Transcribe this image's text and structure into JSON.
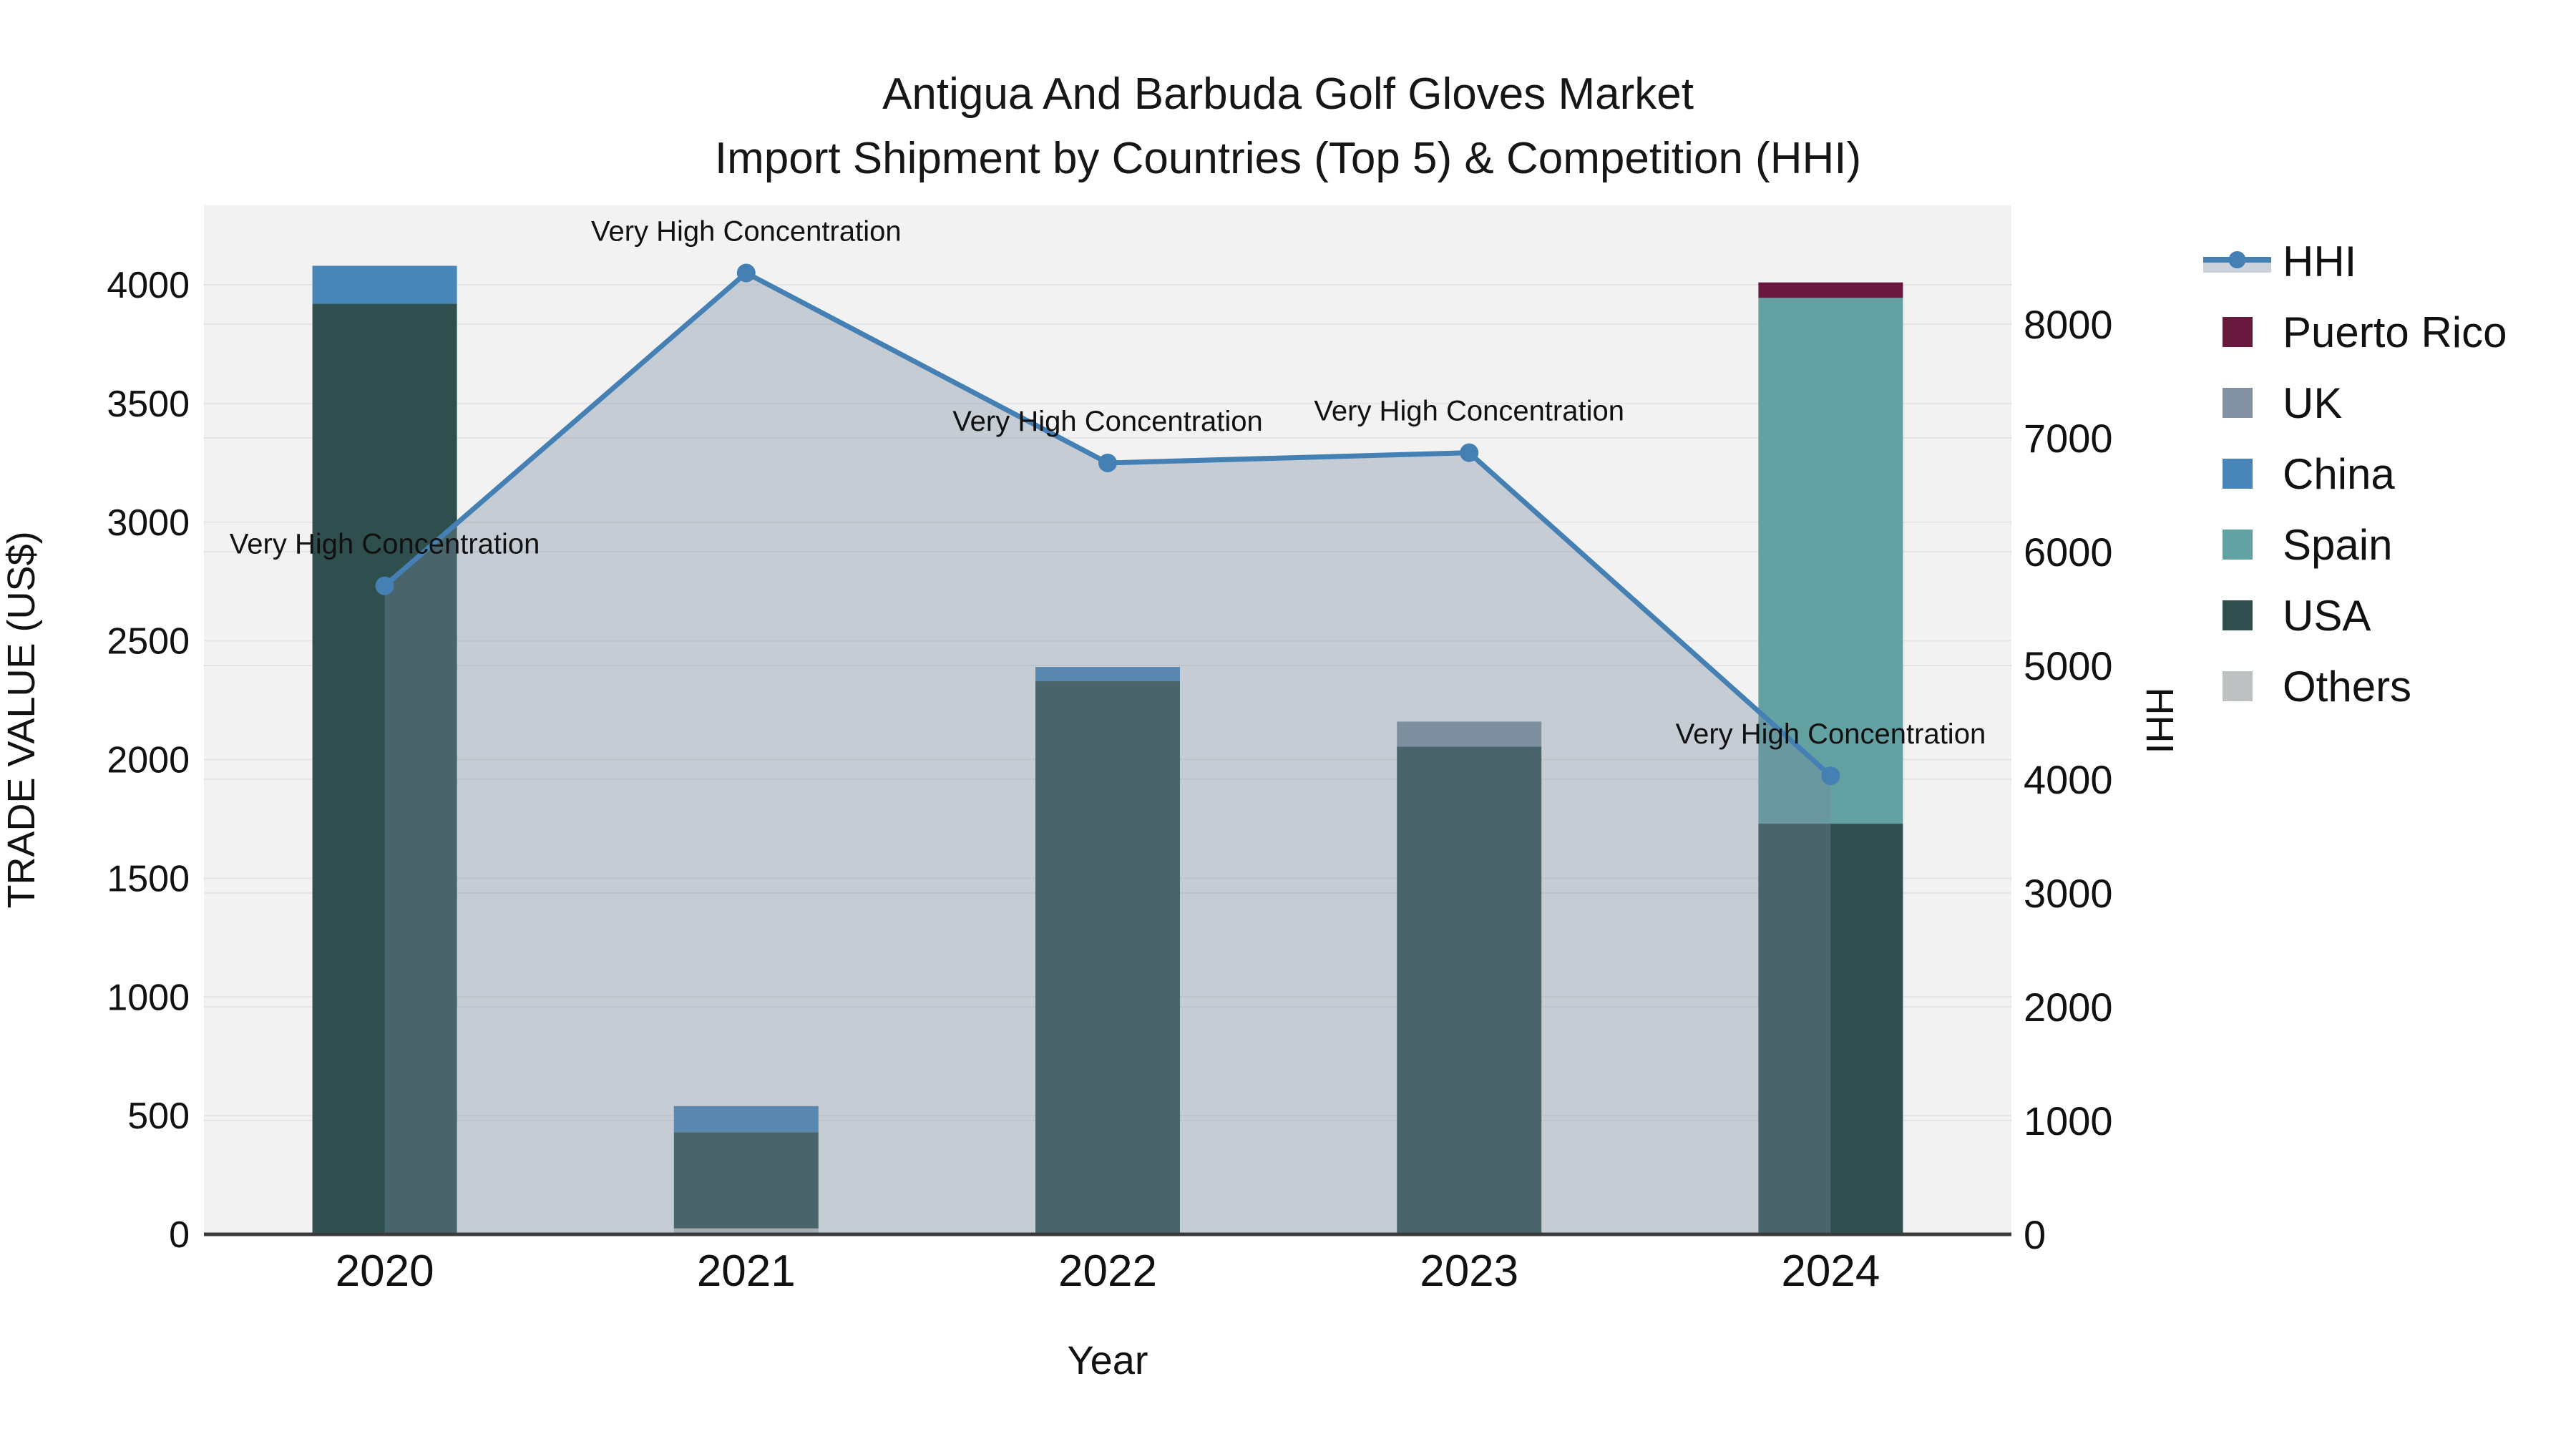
{
  "title": {
    "line1": "Antigua And Barbuda Golf Gloves Market",
    "line2": "Import Shipment by Countries (Top 5) & Competition (HHI)"
  },
  "annotation_text": "Very High Concentration",
  "colors": {
    "plot_background": "#f2f2f2",
    "grid_line": "#e5e5e5",
    "axis_line": "#3b3b3b",
    "text": "#111111",
    "hhi_line": "#4580b4",
    "hhi_area_fill": "rgba(120,137,158,0.37)",
    "legend_band": "#ccd2da"
  },
  "chart_data": {
    "type": "bar+line",
    "categories": [
      "2020",
      "2021",
      "2022",
      "2023",
      "2024"
    ],
    "x": {
      "title": "Year"
    },
    "y_left": {
      "title": "TRADE VALUE (US$)",
      "ticks": [
        0,
        500,
        1000,
        1500,
        2000,
        2500,
        3000,
        3500,
        4000
      ],
      "range": [
        0,
        4330
      ]
    },
    "y_right": {
      "title": "HHI",
      "ticks": [
        0,
        1000,
        2000,
        3000,
        4000,
        5000,
        6000,
        7000,
        8000
      ],
      "range": [
        0,
        9050
      ]
    },
    "stack_order": [
      "Others",
      "USA",
      "Spain",
      "China",
      "UK",
      "Puerto Rico"
    ],
    "series": [
      {
        "name": "Puerto Rico",
        "color": "#69193e",
        "values": [
          0,
          0,
          0,
          0,
          65
        ]
      },
      {
        "name": "UK",
        "color": "#8292a2",
        "values": [
          0,
          0,
          0,
          105,
          0
        ]
      },
      {
        "name": "China",
        "color": "#4886ba",
        "values": [
          160,
          110,
          60,
          0,
          0
        ]
      },
      {
        "name": "Spain",
        "color": "#63a1a2",
        "values": [
          0,
          0,
          0,
          0,
          2215
        ]
      },
      {
        "name": "USA",
        "color": "#2f4f4f",
        "values": [
          3920,
          405,
          2330,
          2055,
          1730
        ]
      },
      {
        "name": "Others",
        "color": "#bec1c1",
        "values": [
          0,
          25,
          0,
          0,
          0
        ]
      }
    ],
    "bar_totals": [
      4080,
      540,
      2390,
      2160,
      4010
    ],
    "line_series": {
      "name": "HHI",
      "axis": "right",
      "values": [
        5700,
        8450,
        6780,
        6870,
        4030
      ],
      "point_annotations": [
        "Very High Concentration",
        "Very High Concentration",
        "Very High Concentration",
        "Very High Concentration",
        "Very High Concentration"
      ]
    },
    "legend_order": [
      "HHI",
      "Puerto Rico",
      "UK",
      "China",
      "Spain",
      "USA",
      "Others"
    ],
    "legend_position": "right",
    "grid": true
  }
}
